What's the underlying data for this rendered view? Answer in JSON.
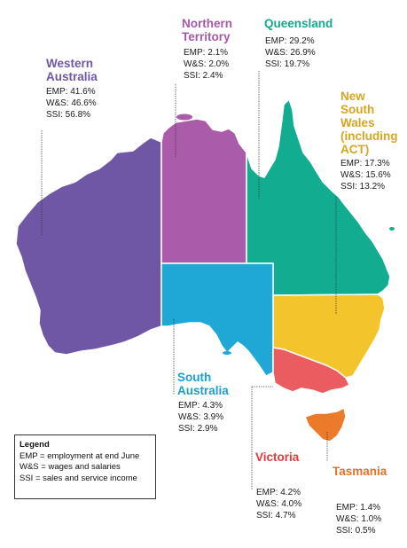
{
  "colors": {
    "wa": "#6f57a5",
    "nt": "#aa5caa",
    "qld": "#12ad90",
    "nsw": "#f4c42c",
    "sa": "#1fa7d5",
    "vic": "#eb5c60",
    "tas": "#eb7a2a",
    "title_wa": "#6f57a5",
    "title_nt": "#a759a8",
    "title_qld": "#14a98f",
    "title_nsw": "#d7a51f",
    "title_sa": "#1a9fcf",
    "title_vic": "#e1383d",
    "title_tas": "#e2712a"
  },
  "regions": {
    "wa": {
      "name": "Western\nAustralia",
      "stats": [
        "EMP: 41.6%",
        "W&S: 46.6%",
        "SSI: 56.8%"
      ]
    },
    "nt": {
      "name": "Northern\nTerritory",
      "stats": [
        "EMP: 2.1%",
        "W&S: 2.0%",
        "SSI: 2.4%"
      ]
    },
    "qld": {
      "name": "Queensland",
      "stats": [
        "EMP: 29.2%",
        "W&S: 26.9%",
        "SSI: 19.7%"
      ]
    },
    "nsw": {
      "name": "New\nSouth\nWales\n(including\nACT)",
      "stats": [
        "EMP: 17.3%",
        "W&S: 15.6%",
        "SSI: 13.2%"
      ]
    },
    "sa": {
      "name": "South\nAustralia",
      "stats": [
        "EMP: 4.3%",
        "W&S: 3.9%",
        "SSI: 2.9%"
      ]
    },
    "vic": {
      "name": "Victoria",
      "stats": [
        "EMP: 4.2%",
        "W&S: 4.0%",
        "SSI: 4.7%"
      ]
    },
    "tas": {
      "name": "Tasmania",
      "stats": [
        "EMP: 1.4%",
        "W&S: 1.0%",
        "SSI: 0.5%"
      ]
    }
  },
  "legend": {
    "title": "Legend",
    "lines": [
      "EMP = employment at end June",
      "W&S = wages and salaries",
      "SSI = sales and service income"
    ]
  }
}
